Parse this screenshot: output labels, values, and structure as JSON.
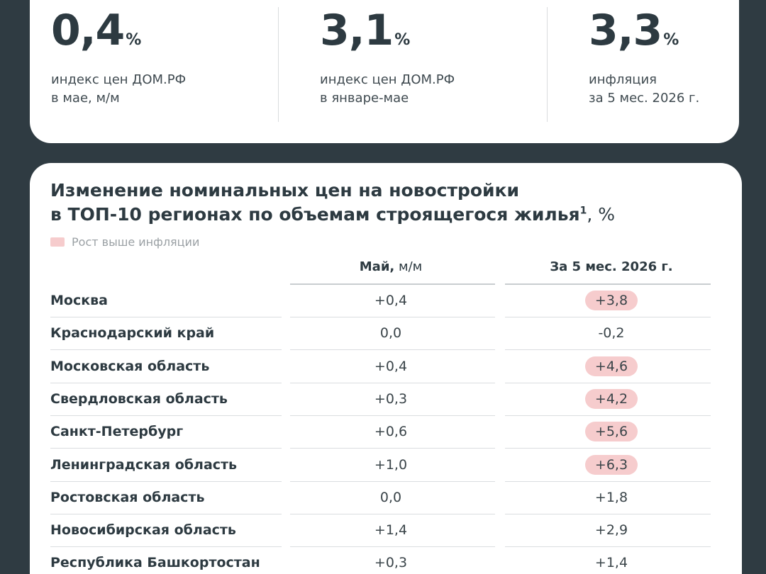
{
  "stats": [
    {
      "value": "0,4",
      "unit": "%",
      "line1": "индекс цен ДОМ.РФ",
      "line2": "в мае, м/м"
    },
    {
      "value": "3,1",
      "unit": "%",
      "line1": "индекс цен ДОМ.РФ",
      "line2": "в январе-мае"
    },
    {
      "value": "3,3",
      "unit": "%",
      "line1": "инфляция",
      "line2": "за 5 мес. 2026 г."
    }
  ],
  "table": {
    "title_line1": "Изменение номинальных цен на новостройки",
    "title_line2": "в ТОП-10 регионах по объемам строящегося жилья",
    "title_sup": "1",
    "title_suffix": ", %",
    "legend": "Рост выше инфляции",
    "highlight_color": "#f6cccd",
    "col1_bold": "Май,",
    "col1_light": " м/м",
    "col2": "За 5 мес. 2026 г.",
    "rows": [
      {
        "region": "Москва",
        "may": "+0,4",
        "ytd": "+3,8",
        "above_inflation": true
      },
      {
        "region": "Краснодарский край",
        "may": "0,0",
        "ytd": "-0,2",
        "above_inflation": false
      },
      {
        "region": "Московская область",
        "may": "+0,4",
        "ytd": "+4,6",
        "above_inflation": true
      },
      {
        "region": "Свердловская область",
        "may": "+0,3",
        "ytd": "+4,2",
        "above_inflation": true
      },
      {
        "region": "Санкт-Петербург",
        "may": "+0,6",
        "ytd": "+5,6",
        "above_inflation": true
      },
      {
        "region": "Ленинградская область",
        "may": "+1,0",
        "ytd": "+6,3",
        "above_inflation": true
      },
      {
        "region": "Ростовская область",
        "may": "0,0",
        "ytd": "+1,8",
        "above_inflation": false
      },
      {
        "region": "Новосибирская область",
        "may": "+1,4",
        "ytd": "+2,9",
        "above_inflation": false
      },
      {
        "region": "Республика Башкортостан",
        "may": "+0,3",
        "ytd": "+1,4",
        "above_inflation": false
      }
    ]
  }
}
